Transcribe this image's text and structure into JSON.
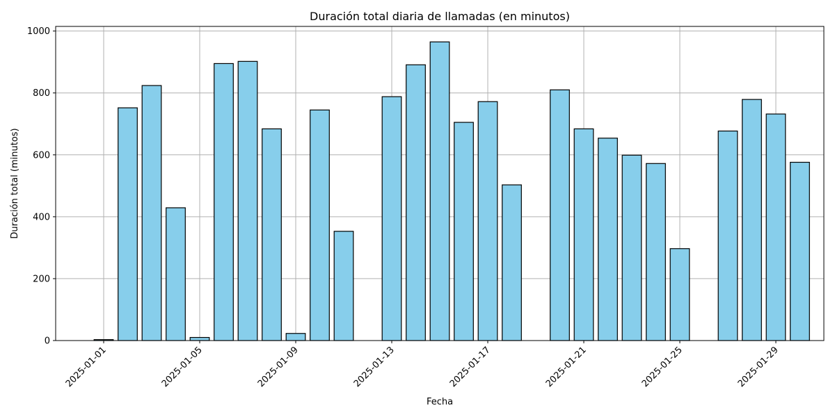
{
  "chart_data": {
    "type": "bar",
    "title": "Duración total diaria de llamadas (en minutos)",
    "xlabel": "Fecha",
    "ylabel": "Duración total (minutos)",
    "bar_color": "#87CEEB",
    "edge_color": "#000000",
    "grid": true,
    "ylim": [
      0,
      1015
    ],
    "x_range": [
      "2024-12-30",
      "2025-01-31"
    ],
    "yticks": [
      0,
      200,
      400,
      600,
      800,
      1000
    ],
    "xticks": [
      "2025-01-01",
      "2025-01-05",
      "2025-01-09",
      "2025-01-13",
      "2025-01-17",
      "2025-01-21",
      "2025-01-25",
      "2025-01-29"
    ],
    "categories": [
      "2025-01-01",
      "2025-01-02",
      "2025-01-03",
      "2025-01-04",
      "2025-01-05",
      "2025-01-06",
      "2025-01-07",
      "2025-01-08",
      "2025-01-09",
      "2025-01-10",
      "2025-01-11",
      "2025-01-12",
      "2025-01-13",
      "2025-01-14",
      "2025-01-15",
      "2025-01-16",
      "2025-01-17",
      "2025-01-18",
      "2025-01-19",
      "2025-01-20",
      "2025-01-21",
      "2025-01-22",
      "2025-01-23",
      "2025-01-24",
      "2025-01-25",
      "2025-01-26",
      "2025-01-27",
      "2025-01-28",
      "2025-01-29",
      "2025-01-30"
    ],
    "values": [
      3,
      752,
      824,
      429,
      10,
      895,
      902,
      684,
      23,
      745,
      353,
      0,
      788,
      891,
      965,
      705,
      772,
      503,
      0,
      810,
      684,
      654,
      599,
      572,
      297,
      0,
      677,
      779,
      732,
      576
    ]
  }
}
